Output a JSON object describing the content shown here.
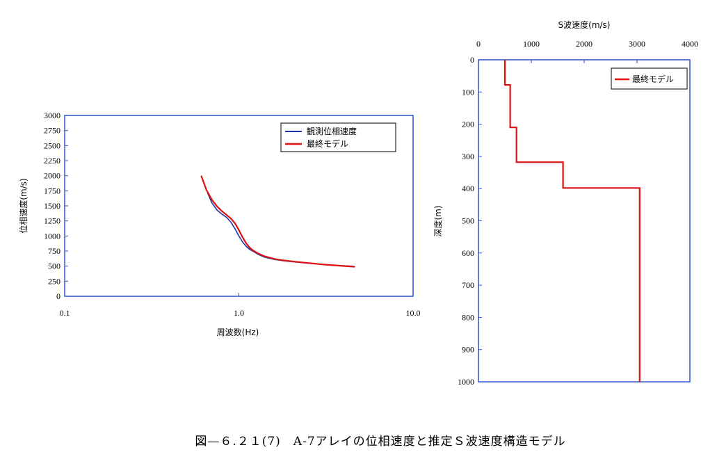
{
  "caption": "図—６.２１(7)　A-7アレイの位相速度と推定Ｓ波速度構造モデル",
  "chart_data": [
    {
      "type": "line",
      "xlabel": "周波数(Hz)",
      "ylabel": "位相速度(m/s)",
      "xscale": "log",
      "xlim": [
        0.1,
        10.0
      ],
      "ylim": [
        0,
        3000
      ],
      "xticks": [
        0.1,
        1.0,
        10.0
      ],
      "xtick_labels": [
        "0.1",
        "1.0",
        "10.0"
      ],
      "yticks": [
        0,
        250,
        500,
        750,
        1000,
        1250,
        1500,
        1750,
        2000,
        2250,
        2500,
        2750,
        3000
      ],
      "grid": false,
      "legend": "top-right",
      "series": [
        {
          "name": "観測位相速度",
          "color": "#2233aa",
          "x": [
            0.66,
            0.7,
            0.75,
            0.8,
            0.85,
            0.9,
            0.95,
            1.0,
            1.05,
            1.1,
            1.15,
            1.2,
            1.3,
            1.4,
            1.6,
            1.8,
            2.0,
            2.5,
            3.0,
            3.5,
            4.0,
            4.5
          ],
          "y": [
            1720,
            1550,
            1430,
            1360,
            1310,
            1230,
            1120,
            1000,
            900,
            830,
            780,
            750,
            690,
            650,
            610,
            590,
            575,
            548,
            528,
            515,
            505,
            498
          ]
        },
        {
          "name": "最終モデル",
          "color": "#dd1111",
          "x": [
            0.61,
            0.65,
            0.7,
            0.75,
            0.8,
            0.85,
            0.9,
            0.95,
            1.0,
            1.05,
            1.1,
            1.15,
            1.2,
            1.3,
            1.4,
            1.6,
            1.8,
            2.0,
            2.5,
            3.0,
            3.5,
            4.0,
            4.6
          ],
          "y": [
            1990,
            1770,
            1600,
            1490,
            1410,
            1350,
            1290,
            1210,
            1100,
            980,
            880,
            810,
            765,
            705,
            665,
            620,
            595,
            580,
            552,
            530,
            515,
            502,
            490
          ]
        }
      ]
    },
    {
      "type": "line",
      "xlabel": "S波速度(m/s)",
      "ylabel": "深度(m)",
      "x_axis_position": "top",
      "y_inverted": true,
      "xlim": [
        0,
        4000
      ],
      "ylim": [
        0,
        1000
      ],
      "xticks": [
        0,
        1000,
        2000,
        3000,
        4000
      ],
      "yticks": [
        0,
        100,
        200,
        300,
        400,
        500,
        600,
        700,
        800,
        900,
        1000
      ],
      "grid": false,
      "legend": "top-right",
      "series": [
        {
          "name": "最終モデル",
          "color": "#dd1111",
          "x": [
            500,
            500,
            600,
            600,
            720,
            720,
            1600,
            1600,
            3050,
            3050
          ],
          "y": [
            0,
            78,
            78,
            210,
            210,
            318,
            318,
            398,
            398,
            1000
          ]
        }
      ]
    }
  ]
}
